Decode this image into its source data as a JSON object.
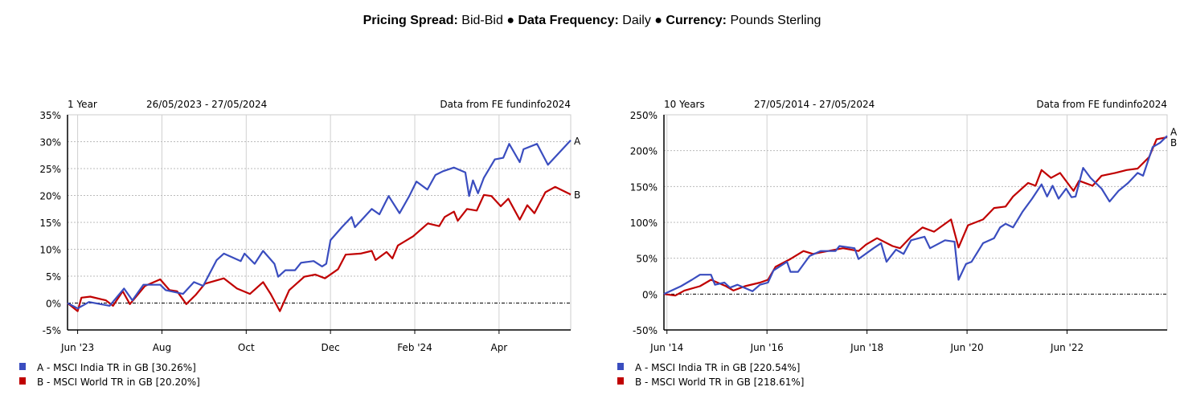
{
  "header": {
    "pricing_label": "Pricing Spread:",
    "pricing_value": "Bid-Bid",
    "sep": "●",
    "freq_label": "Data Frequency:",
    "freq_value": "Daily",
    "currency_label": "Currency:",
    "currency_value": "Pounds Sterling"
  },
  "colors": {
    "A": "#3a4dbf",
    "B": "#c00000"
  },
  "chart_data": [
    {
      "type": "line",
      "period": "1 Year",
      "range": "26/05/2023 - 27/05/2024",
      "source": "Data from FE fundinfo2024",
      "x_unit": "months since Jun '23",
      "xlim": [
        -0.24,
        11.7
      ],
      "ylim": [
        -5,
        35
      ],
      "yticks": [
        -5,
        0,
        5,
        10,
        15,
        20,
        25,
        30,
        35
      ],
      "ytick_labels": [
        "-5%",
        "0%",
        "5%",
        "10%",
        "15%",
        "20%",
        "25%",
        "30%",
        "35%"
      ],
      "xticks": [
        0,
        2,
        4,
        6,
        8,
        10
      ],
      "xtick_labels": [
        "Jun '23",
        "Aug",
        "Oct",
        "Dec",
        "Feb '24",
        "Apr"
      ],
      "grid": true,
      "series": [
        {
          "key": "A",
          "legend": "A - MSCI India TR in GB [30.26%]",
          "points": [
            [
              -0.24,
              0
            ],
            [
              0,
              -1
            ],
            [
              0.27,
              0.2
            ],
            [
              0.76,
              -0.5
            ],
            [
              1.1,
              2.7
            ],
            [
              1.3,
              0.5
            ],
            [
              1.56,
              3.4
            ],
            [
              1.96,
              3.4
            ],
            [
              2.09,
              2.4
            ],
            [
              2.5,
              1.7
            ],
            [
              2.76,
              3.9
            ],
            [
              2.98,
              3.2
            ],
            [
              3.3,
              8
            ],
            [
              3.47,
              9.2
            ],
            [
              3.87,
              7.8
            ],
            [
              3.96,
              9.2
            ],
            [
              4.2,
              7.3
            ],
            [
              4.4,
              9.7
            ],
            [
              4.67,
              7.3
            ],
            [
              4.76,
              4.9
            ],
            [
              4.93,
              6.1
            ],
            [
              5.16,
              6.1
            ],
            [
              5.3,
              7.5
            ],
            [
              5.6,
              7.8
            ],
            [
              5.8,
              6.8
            ],
            [
              5.9,
              7.3
            ],
            [
              6,
              11.7
            ],
            [
              6.27,
              14.1
            ],
            [
              6.5,
              16
            ],
            [
              6.58,
              14.1
            ],
            [
              6.98,
              17.5
            ],
            [
              7.16,
              16.5
            ],
            [
              7.38,
              19.9
            ],
            [
              7.64,
              16.7
            ],
            [
              7.87,
              19.9
            ],
            [
              8.04,
              22.6
            ],
            [
              8.3,
              21.1
            ],
            [
              8.49,
              23.8
            ],
            [
              8.67,
              24.5
            ],
            [
              8.93,
              25.2
            ],
            [
              9.2,
              24.3
            ],
            [
              9.29,
              19.9
            ],
            [
              9.38,
              22.8
            ],
            [
              9.5,
              20.4
            ],
            [
              9.64,
              23.3
            ],
            [
              9.9,
              26.7
            ],
            [
              10.1,
              27
            ],
            [
              10.24,
              29.6
            ],
            [
              10.49,
              26.2
            ],
            [
              10.58,
              28.6
            ],
            [
              10.9,
              29.6
            ],
            [
              11.16,
              25.7
            ],
            [
              11.7,
              30.26
            ]
          ]
        },
        {
          "key": "B",
          "legend": "B - MSCI World TR in GB [20.20%]",
          "points": [
            [
              -0.24,
              0
            ],
            [
              0,
              -1.5
            ],
            [
              0.09,
              1
            ],
            [
              0.3,
              1.2
            ],
            [
              0.67,
              0.5
            ],
            [
              0.84,
              -0.5
            ],
            [
              1.07,
              2.2
            ],
            [
              1.24,
              -0.2
            ],
            [
              1.6,
              3.2
            ],
            [
              1.96,
              4.4
            ],
            [
              2.18,
              2.4
            ],
            [
              2.36,
              2.2
            ],
            [
              2.58,
              -0.2
            ],
            [
              2.8,
              1.5
            ],
            [
              3.02,
              3.6
            ],
            [
              3.47,
              4.6
            ],
            [
              3.78,
              2.7
            ],
            [
              4.09,
              1.7
            ],
            [
              4.4,
              3.9
            ],
            [
              4.58,
              1.7
            ],
            [
              4.8,
              -1.5
            ],
            [
              5.02,
              2.4
            ],
            [
              5.38,
              4.9
            ],
            [
              5.64,
              5.3
            ],
            [
              5.87,
              4.6
            ],
            [
              6.18,
              6.3
            ],
            [
              6.36,
              9
            ],
            [
              6.71,
              9.2
            ],
            [
              6.98,
              9.7
            ],
            [
              7.07,
              8
            ],
            [
              7.33,
              9.5
            ],
            [
              7.47,
              8.3
            ],
            [
              7.6,
              10.7
            ],
            [
              7.96,
              12.4
            ],
            [
              8.31,
              14.8
            ],
            [
              8.58,
              14.3
            ],
            [
              8.71,
              16
            ],
            [
              8.93,
              17
            ],
            [
              9.02,
              15.3
            ],
            [
              9.24,
              17.5
            ],
            [
              9.47,
              17.2
            ],
            [
              9.64,
              20.1
            ],
            [
              9.82,
              19.9
            ],
            [
              10.04,
              18
            ],
            [
              10.22,
              19.4
            ],
            [
              10.49,
              15.5
            ],
            [
              10.67,
              18.2
            ],
            [
              10.84,
              16.7
            ],
            [
              11.1,
              20.6
            ],
            [
              11.33,
              21.6
            ],
            [
              11.7,
              20.2
            ]
          ]
        }
      ]
    },
    {
      "type": "line",
      "period": "10 Years",
      "range": "27/05/2014 - 27/05/2024",
      "source": "Data from FE fundinfo2024",
      "x_unit": "years since Jun '14",
      "xlim": [
        -0.06,
        10.0
      ],
      "ylim": [
        -50,
        250
      ],
      "yticks": [
        -50,
        0,
        50,
        100,
        150,
        200,
        250
      ],
      "ytick_labels": [
        "-50%",
        "0%",
        "50%",
        "100%",
        "150%",
        "200%",
        "250%"
      ],
      "xticks": [
        0,
        2,
        4,
        6,
        8
      ],
      "xtick_labels": [
        "Jun '14",
        "Jun '16",
        "Jun '18",
        "Jun '20",
        "Jun '22"
      ],
      "grid": true,
      "series": [
        {
          "key": "A",
          "legend": "A - MSCI India TR in GB [220.54%]",
          "points": [
            [
              -0.06,
              0
            ],
            [
              0.28,
              11
            ],
            [
              0.5,
              20
            ],
            [
              0.66,
              27
            ],
            [
              0.88,
              27
            ],
            [
              0.96,
              13
            ],
            [
              1.15,
              16
            ],
            [
              1.26,
              9
            ],
            [
              1.41,
              13
            ],
            [
              1.71,
              4
            ],
            [
              1.86,
              13
            ],
            [
              2.02,
              16
            ],
            [
              2.13,
              33
            ],
            [
              2.4,
              45
            ],
            [
              2.47,
              31
            ],
            [
              2.62,
              31
            ],
            [
              2.85,
              53
            ],
            [
              3.07,
              60
            ],
            [
              3.37,
              60
            ],
            [
              3.45,
              67
            ],
            [
              3.75,
              64
            ],
            [
              3.83,
              49
            ],
            [
              4.13,
              64
            ],
            [
              4.28,
              71
            ],
            [
              4.39,
              45
            ],
            [
              4.58,
              62
            ],
            [
              4.73,
              56
            ],
            [
              4.88,
              75
            ],
            [
              5.15,
              80
            ],
            [
              5.26,
              64
            ],
            [
              5.56,
              75
            ],
            [
              5.75,
              73
            ],
            [
              5.83,
              20
            ],
            [
              5.98,
              42
            ],
            [
              6.09,
              45
            ],
            [
              6.32,
              71
            ],
            [
              6.54,
              78
            ],
            [
              6.66,
              93
            ],
            [
              6.77,
              98
            ],
            [
              6.92,
              93
            ],
            [
              7.11,
              115
            ],
            [
              7.3,
              133
            ],
            [
              7.49,
              153
            ],
            [
              7.6,
              136
            ],
            [
              7.71,
              151
            ],
            [
              7.83,
              133
            ],
            [
              7.98,
              147
            ],
            [
              8.09,
              135
            ],
            [
              8.17,
              136
            ],
            [
              8.32,
              176
            ],
            [
              8.47,
              162
            ],
            [
              8.69,
              147
            ],
            [
              8.85,
              129
            ],
            [
              9.03,
              144
            ],
            [
              9.22,
              155
            ],
            [
              9.41,
              169
            ],
            [
              9.52,
              165
            ],
            [
              9.71,
              205
            ],
            [
              9.86,
              211
            ],
            [
              10.0,
              220.54
            ]
          ]
        },
        {
          "key": "B",
          "legend": "B - MSCI World TR in GB [218.61%]",
          "points": [
            [
              -0.06,
              0
            ],
            [
              0.17,
              -2
            ],
            [
              0.35,
              5
            ],
            [
              0.66,
              11
            ],
            [
              0.88,
              20
            ],
            [
              1.18,
              11
            ],
            [
              1.33,
              5
            ],
            [
              1.56,
              11
            ],
            [
              1.86,
              16
            ],
            [
              2.02,
              20
            ],
            [
              2.17,
              38
            ],
            [
              2.47,
              49
            ],
            [
              2.73,
              60
            ],
            [
              2.92,
              56
            ],
            [
              3.22,
              60
            ],
            [
              3.52,
              64
            ],
            [
              3.83,
              60
            ],
            [
              3.98,
              69
            ],
            [
              4.2,
              78
            ],
            [
              4.51,
              67
            ],
            [
              4.66,
              64
            ],
            [
              4.88,
              80
            ],
            [
              5.11,
              93
            ],
            [
              5.34,
              87
            ],
            [
              5.68,
              104
            ],
            [
              5.83,
              65
            ],
            [
              6.02,
              96
            ],
            [
              6.32,
              104
            ],
            [
              6.54,
              120
            ],
            [
              6.77,
              122
            ],
            [
              6.92,
              136
            ],
            [
              7.22,
              155
            ],
            [
              7.37,
              151
            ],
            [
              7.49,
              173
            ],
            [
              7.68,
              162
            ],
            [
              7.86,
              169
            ],
            [
              8.05,
              151
            ],
            [
              8.13,
              144
            ],
            [
              8.24,
              158
            ],
            [
              8.51,
              151
            ],
            [
              8.69,
              165
            ],
            [
              8.96,
              169
            ],
            [
              9.19,
              173
            ],
            [
              9.41,
              175
            ],
            [
              9.64,
              191
            ],
            [
              9.79,
              216
            ],
            [
              10.0,
              218.61
            ]
          ]
        }
      ]
    }
  ]
}
